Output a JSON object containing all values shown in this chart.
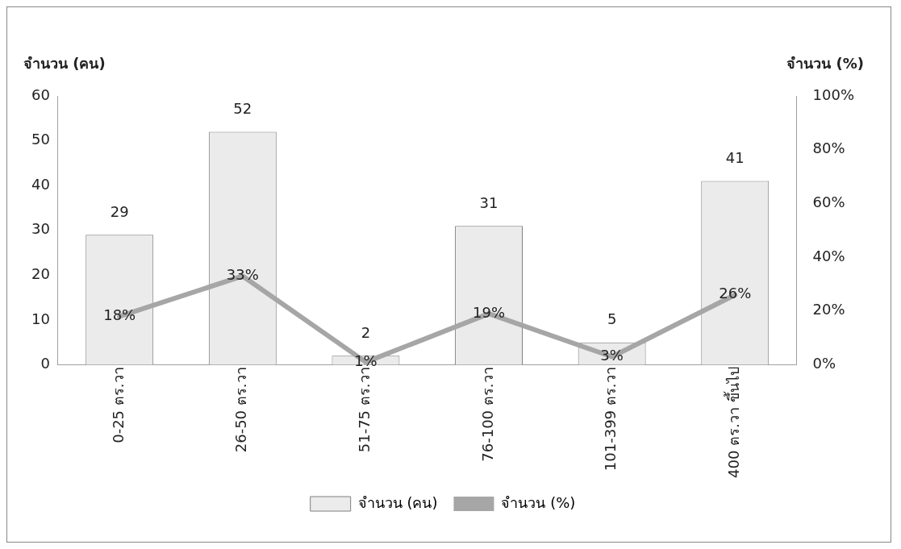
{
  "chart_data": {
    "type": "bar",
    "ylabel": "จำนวน (คน)",
    "y2label": "จำนวน (%)",
    "categories": [
      "0-25 ตร.วา",
      "26-50 ตร.วา",
      "51-75 ตร.วา",
      "76-100 ตร.วา",
      "101-399 ตร.วา",
      "400 ตร.วา ขึ้นไป"
    ],
    "series": [
      {
        "name": "จำนวน (คน)",
        "color": "#ebebeb",
        "values": [
          29,
          52,
          2,
          31,
          5,
          41
        ],
        "value_labels": [
          "29",
          "52",
          "2",
          "31",
          "5",
          "41"
        ]
      },
      {
        "name": "จำนวน (%)",
        "type": "line",
        "axis": "y2",
        "color": "#a6a6a6",
        "values": [
          18,
          33,
          1,
          19,
          3,
          26
        ],
        "value_labels": [
          "18%",
          "33%",
          "1%",
          "19%",
          "3%",
          "26%"
        ]
      }
    ],
    "ylim": [
      0,
      60
    ],
    "yticks": [
      0,
      10,
      20,
      30,
      40,
      50,
      60
    ],
    "y2lim": [
      0,
      100
    ],
    "y2ticks": [
      {
        "value": 0,
        "label": "0%"
      },
      {
        "value": 20,
        "label": "20%"
      },
      {
        "value": 40,
        "label": "40%"
      },
      {
        "value": 60,
        "label": "60%"
      },
      {
        "value": 80,
        "label": "80%"
      },
      {
        "value": 100,
        "label": "100%"
      }
    ],
    "grid": false,
    "legend": "bottom",
    "marker": "none",
    "line_style": "solid"
  }
}
